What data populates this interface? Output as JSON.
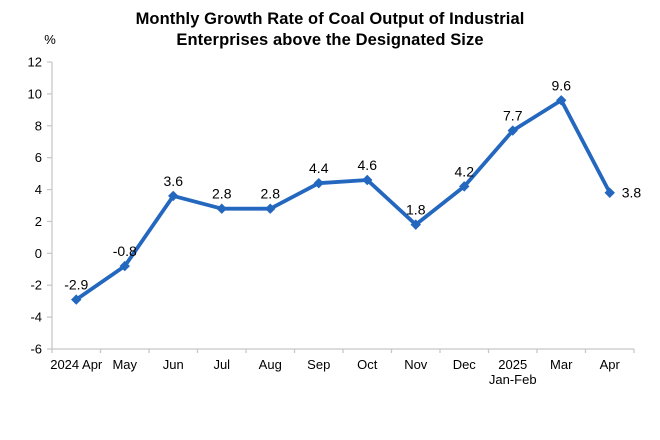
{
  "chart_data": {
    "type": "line",
    "title": "Monthly Growth Rate of Coal Output of Industrial Enterprises above the Designated Size",
    "title_lines": [
      "Monthly Growth Rate of Coal Output of Industrial",
      "Enterprises above the Designated Size"
    ],
    "ylabel": "%",
    "xlabel": "",
    "categories": [
      "2024 Apr",
      "May",
      "Jun",
      "Jul",
      "Aug",
      "Sep",
      "Oct",
      "Nov",
      "Dec",
      "2025 Jan-Feb",
      "Mar",
      "Apr"
    ],
    "values": [
      -2.9,
      -0.8,
      3.6,
      2.8,
      2.8,
      4.4,
      4.6,
      1.8,
      4.2,
      7.7,
      9.6,
      3.8
    ],
    "data_labels": [
      "-2.9",
      "-0.8",
      "3.6",
      "2.8",
      "2.8",
      "4.4",
      "4.6",
      "1.8",
      "4.2",
      "7.7",
      "9.6",
      "3.8"
    ],
    "y_ticks": [
      12,
      10,
      8,
      6,
      4,
      2,
      0,
      -2,
      -4,
      -6
    ],
    "ylim": [
      -6,
      12
    ],
    "grid": false,
    "legend": false,
    "marker": "diamond",
    "line_color": "#2467BF",
    "axis_color": "#c8c8c8",
    "text_color": "#000000",
    "two_line_categories": [
      9
    ],
    "label_position_overrides": {
      "11": "right"
    }
  }
}
